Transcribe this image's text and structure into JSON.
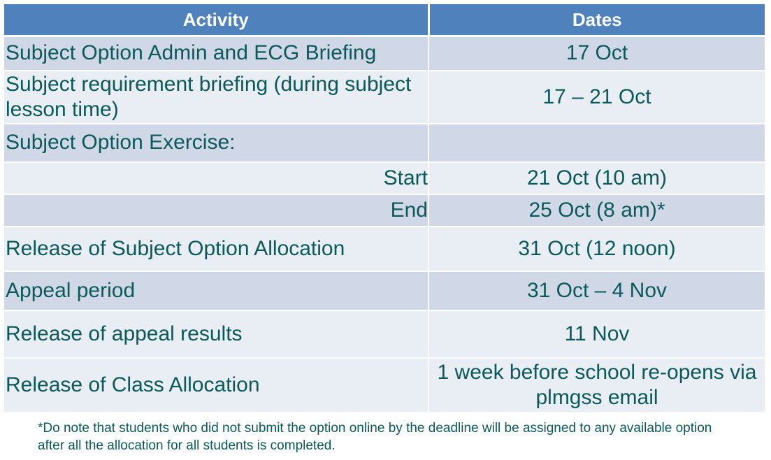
{
  "table": {
    "headers": {
      "activity": "Activity",
      "dates": "Dates"
    },
    "rows": [
      {
        "activity": "Subject Option Admin and ECG Briefing",
        "dates": "17 Oct"
      },
      {
        "activity": "Subject requirement briefing (during subject lesson time)",
        "dates": "17 – 21 Oct"
      },
      {
        "activity": "Subject Option Exercise:",
        "dates": ""
      },
      {
        "activity": "Start",
        "dates": "21 Oct (10 am)"
      },
      {
        "activity": "End",
        "dates": "25 Oct (8 am)*"
      },
      {
        "activity": "Release of Subject Option Allocation",
        "dates": "31 Oct (12 noon)"
      },
      {
        "activity": "Appeal period",
        "dates": "31 Oct – 4 Nov"
      },
      {
        "activity": "Release of appeal results",
        "dates": "11 Nov"
      },
      {
        "activity": "Release of Class Allocation",
        "dates": "1 week before school re-opens via plmgss email"
      }
    ]
  },
  "footnote": "*Do note that students who did not submit the option online by the deadline will be assigned to any available option after all the allocation for all students is completed.",
  "colors": {
    "header_bg": "#4f81bd",
    "row_dark": "#d0d8e8",
    "row_light": "#e9edf4",
    "text": "#0b5a5a"
  }
}
